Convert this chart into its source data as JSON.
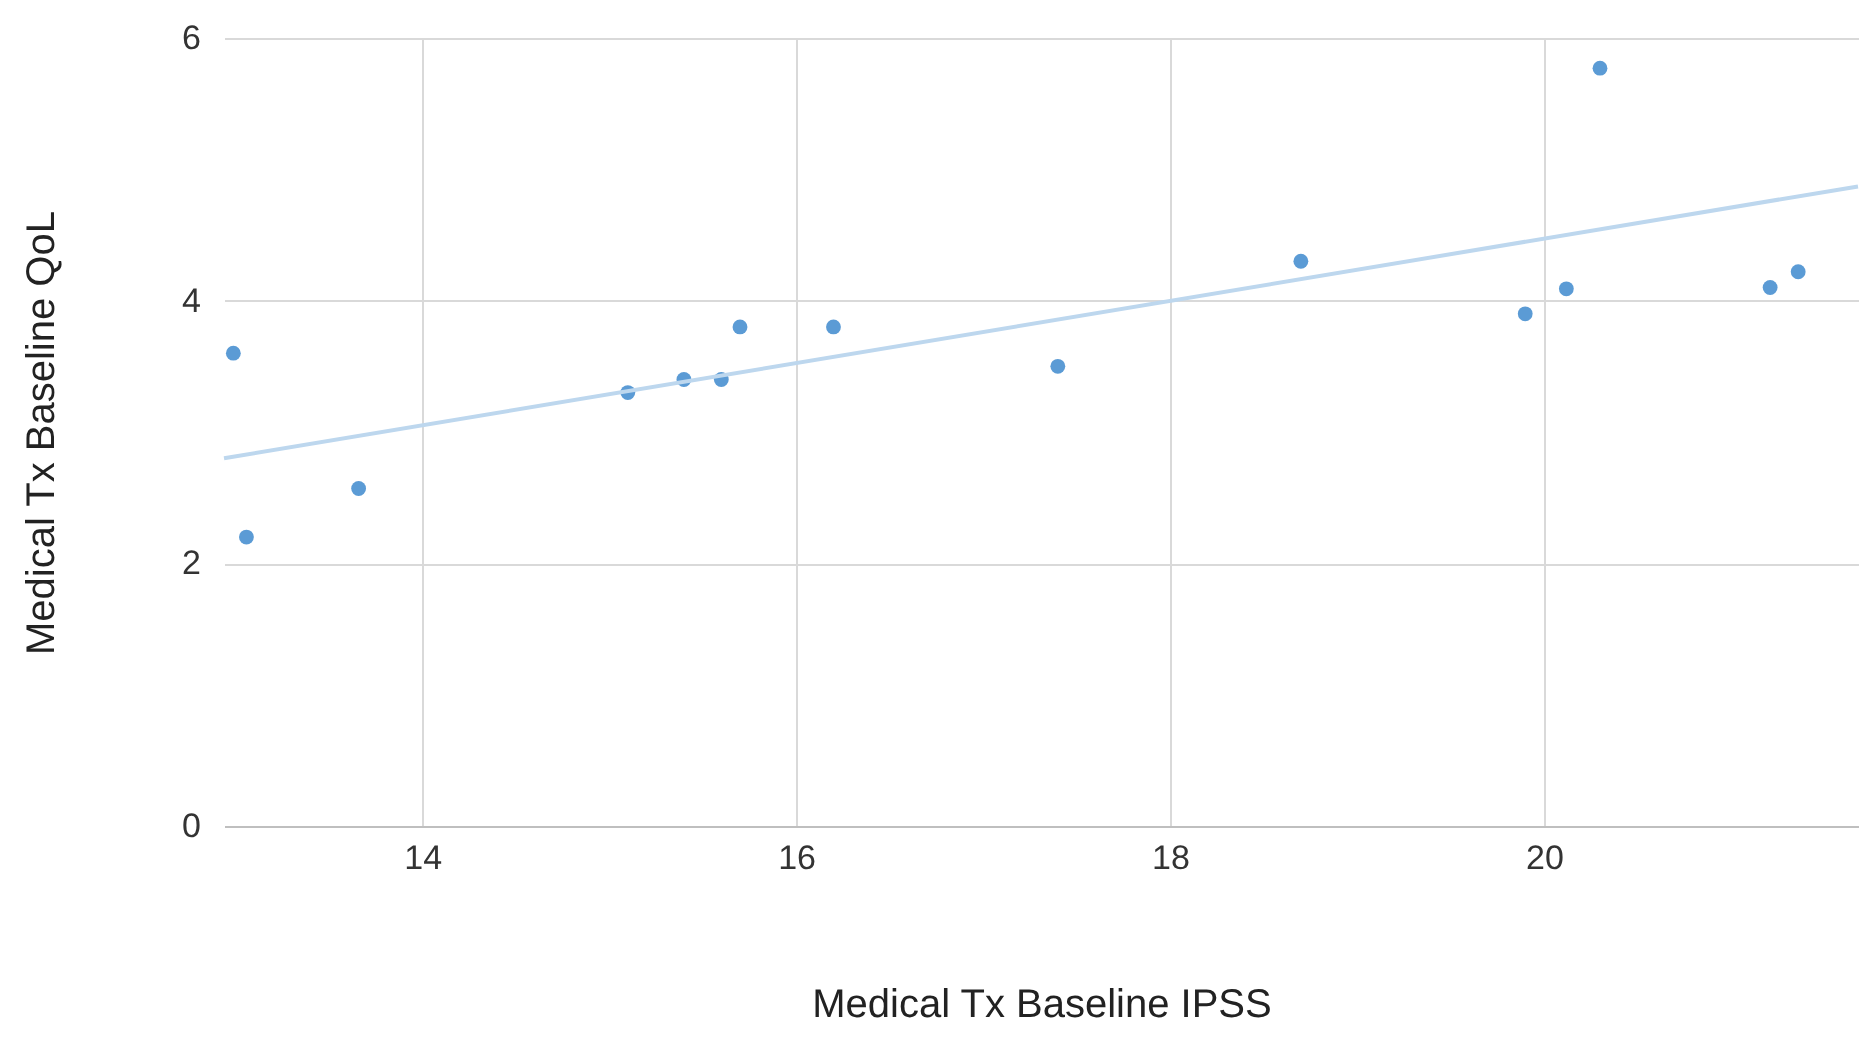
{
  "chart_data": {
    "type": "scatter",
    "xlabel": "Medical Tx Baseline IPSS",
    "ylabel": "Medical Tx Baseline QoL",
    "xlim": [
      12.94,
      21.68
    ],
    "xticks": [
      14,
      16,
      18,
      20
    ],
    "ylim": [
      0,
      6
    ],
    "yticks": [
      0,
      2,
      4,
      6
    ],
    "grid": true,
    "series": [
      {
        "marker": "circle",
        "color": "#5b9bd5",
        "x": [
          12.99,
          13.06,
          13.66,
          15.1,
          15.4,
          15.6,
          15.7,
          16.2,
          17.4,
          18.7,
          19.9,
          20.12,
          20.3,
          21.21,
          21.36
        ],
        "values": [
          3.6,
          2.2,
          2.57,
          3.3,
          3.4,
          3.4,
          3.8,
          3.8,
          3.5,
          4.3,
          3.9,
          4.09,
          5.77,
          4.1,
          4.22
        ]
      },
      {
        "type": "line",
        "color": "#bdd7ee",
        "x": [
          12.94,
          21.68
        ],
        "values": [
          2.8,
          4.87
        ]
      }
    ]
  }
}
